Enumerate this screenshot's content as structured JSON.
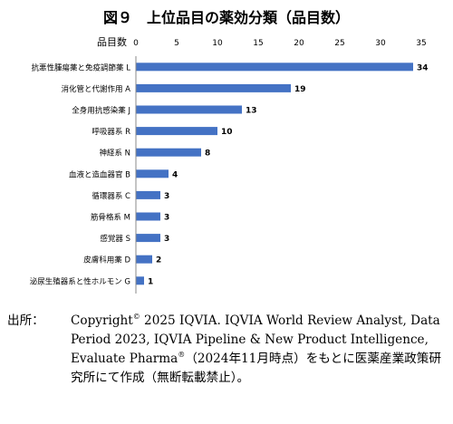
{
  "title": "図９　上位品目の薬効分類（品目数）",
  "chart_data": {
    "type": "bar",
    "orientation": "horizontal",
    "title": "図９　上位品目の薬効分類（品目数）",
    "axis_unit_label": "品目数",
    "xlim": [
      0,
      35
    ],
    "xticks": [
      0,
      5,
      10,
      15,
      20,
      25,
      30,
      35
    ],
    "grid": false,
    "bar_color": "#4472c4",
    "categories": [
      "抗悪性腫瘍薬と免疫調節薬 L",
      "消化管と代謝作用 A",
      "全身用抗感染薬 J",
      "呼吸器系 R",
      "神経系 N",
      "血液と造血器官 B",
      "循環器系 C",
      "筋骨格系 M",
      "感覚器 S",
      "皮膚科用薬 D",
      "泌尿生殖器系と性ホルモン G"
    ],
    "values": [
      34,
      19,
      13,
      10,
      8,
      4,
      3,
      3,
      3,
      2,
      1
    ]
  },
  "source": {
    "label": "出所：",
    "text_before_sup1": "Copyright",
    "sup1": "©",
    "text_middle": " 2025 IQVIA. IQVIA World Review Analyst, Data Period 2023, IQVIA Pipeline & New Product Intelligence, Evaluate Pharma",
    "sup2": "®",
    "text_after": "（2024年11月時点）をもとに医薬産業政策研究所にて作成（無断転載禁止）。"
  }
}
